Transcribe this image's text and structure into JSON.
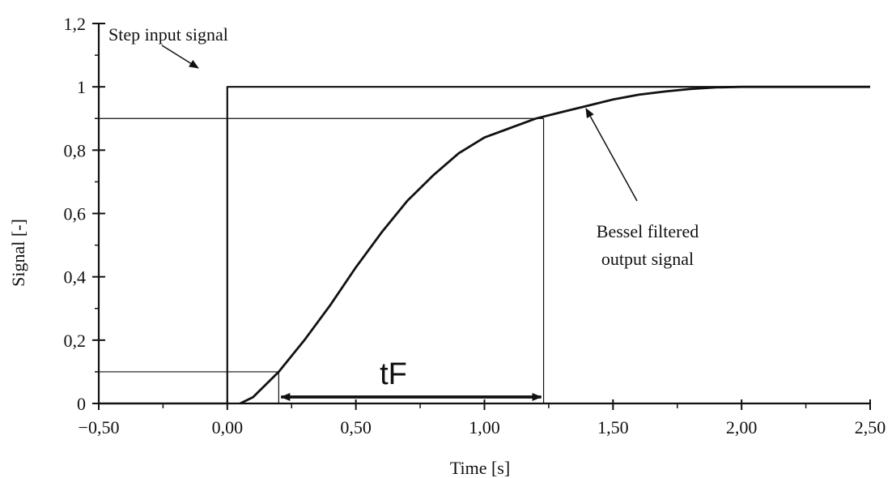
{
  "chart_data": {
    "type": "line",
    "xlabel": "Time [s]",
    "ylabel": "Signal [-]",
    "xlim": [
      -0.5,
      2.5
    ],
    "ylim": [
      0,
      1.2
    ],
    "x_ticks": [
      -0.5,
      0,
      0.5,
      1,
      1.5,
      2,
      2.5
    ],
    "x_tick_labels": [
      "−0,50",
      "0,00",
      "0,50",
      "1,00",
      "1,50",
      "2,00",
      "2,50"
    ],
    "y_ticks": [
      0,
      0.2,
      0.4,
      0.6,
      0.8,
      1,
      1.2
    ],
    "y_tick_labels": [
      "0",
      "0,2",
      "0,4",
      "0,6",
      "0,8",
      "1",
      "1,2"
    ],
    "grid": false,
    "series": [
      {
        "name": "Step input signal",
        "x": [
          -0.5,
          0.0,
          0.0,
          2.5
        ],
        "y": [
          0.0,
          0.0,
          1.0,
          1.0
        ]
      },
      {
        "name": "Bessel filtered output signal",
        "x": [
          0.05,
          0.1,
          0.2,
          0.3,
          0.4,
          0.5,
          0.6,
          0.7,
          0.8,
          0.9,
          1.0,
          1.1,
          1.2,
          1.3,
          1.4,
          1.5,
          1.6,
          1.7,
          1.8,
          1.9,
          2.0,
          2.1,
          2.2,
          2.3,
          2.4,
          2.5
        ],
        "y": [
          0.0,
          0.02,
          0.1,
          0.2,
          0.31,
          0.43,
          0.54,
          0.64,
          0.72,
          0.79,
          0.84,
          0.87,
          0.9,
          0.92,
          0.94,
          0.96,
          0.975,
          0.985,
          0.993,
          0.998,
          1.0,
          1.0,
          1.0,
          1.0,
          1.0,
          1.0
        ]
      }
    ],
    "reference_lines": {
      "level_low": 0.1,
      "level_high": 0.9,
      "t_low": 0.2,
      "t_high": 1.23
    },
    "annotations": {
      "step_label": "Step input signal",
      "bessel_label_line1": "Bessel filtered",
      "bessel_label_line2": "output signal",
      "tf_label": "tF"
    }
  }
}
